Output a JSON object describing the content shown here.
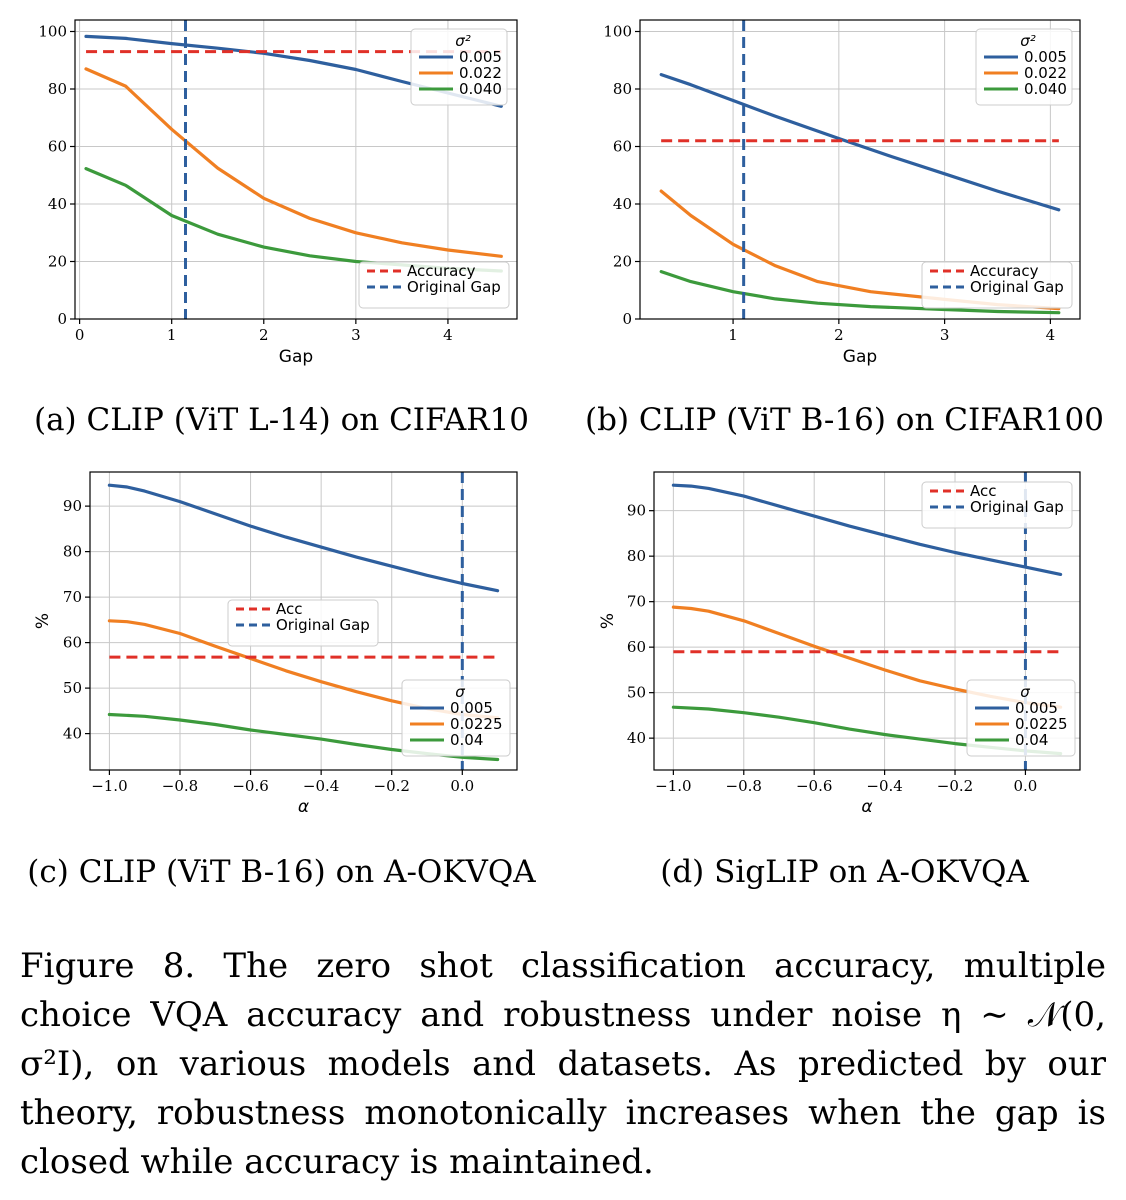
{
  "figure": {
    "caption_label": "Figure 8.",
    "caption_text": "The zero shot classification accuracy, multiple choice VQA accuracy and robustness under noise η ∼ 𝒩(0, σ²I), on various models and datasets. As predicted by our theory, robustness monotonically increases when the gap is closed while accuracy is maintained."
  },
  "colors": {
    "blue": "#2e5f9e",
    "orange": "#f07f22",
    "green": "#3c9a3c",
    "red": "#e03028",
    "grid": "#c8c8c8"
  },
  "chart_data": [
    {
      "type": "line",
      "caption": "(a) CLIP (ViT L-14) on CIFAR10",
      "xlabel": "Gap",
      "ylabel": "",
      "xlim": [
        -0.05,
        4.75
      ],
      "ylim": [
        0,
        104
      ],
      "xticks": [
        0,
        1,
        2,
        3,
        4
      ],
      "xtick_labels": [
        "0",
        "1",
        "2",
        "3",
        "4"
      ],
      "yticks": [
        0,
        20,
        40,
        60,
        80,
        100
      ],
      "ytick_labels": [
        "0",
        "20",
        "40",
        "60",
        "80",
        "100"
      ],
      "legend_title": "σ²",
      "legend_placement": "top-right",
      "ref_legend_placement": "lower-right",
      "series": [
        {
          "name": "0.005",
          "color": "blue",
          "x": [
            0.07,
            0.5,
            1.0,
            1.5,
            2.0,
            2.5,
            3.0,
            3.5,
            4.0,
            4.58
          ],
          "values": [
            98.3,
            97.6,
            95.8,
            94.2,
            92.4,
            89.9,
            86.8,
            82.6,
            78.6,
            74.0
          ]
        },
        {
          "name": "0.022",
          "color": "orange",
          "x": [
            0.07,
            0.5,
            1.0,
            1.5,
            2.0,
            2.5,
            3.0,
            3.5,
            4.0,
            4.58
          ],
          "values": [
            87.0,
            81.0,
            66.0,
            52.5,
            42.0,
            35.0,
            30.0,
            26.5,
            24.0,
            21.8
          ]
        },
        {
          "name": "0.040",
          "color": "green",
          "x": [
            0.07,
            0.5,
            1.0,
            1.5,
            2.0,
            2.5,
            3.0,
            3.5,
            4.0,
            4.58
          ],
          "values": [
            52.3,
            46.5,
            36.0,
            29.5,
            25.0,
            22.0,
            20.0,
            18.8,
            17.6,
            16.7
          ]
        }
      ],
      "ref_lines": [
        {
          "name": "Accuracy",
          "orientation": "horizontal",
          "value": 93.0,
          "from": 0.07,
          "to": 4.58,
          "color": "red"
        },
        {
          "name": "Original Gap",
          "orientation": "vertical",
          "value": 1.15,
          "color": "blue"
        }
      ]
    },
    {
      "type": "line",
      "caption": "(b) CLIP (ViT B-16) on CIFAR100",
      "xlabel": "Gap",
      "ylabel": "",
      "xlim": [
        0.12,
        4.28
      ],
      "ylim": [
        0,
        104
      ],
      "xticks": [
        1,
        2,
        3,
        4
      ],
      "xtick_labels": [
        "1",
        "2",
        "3",
        "4"
      ],
      "yticks": [
        0,
        20,
        40,
        60,
        80,
        100
      ],
      "ytick_labels": [
        "0",
        "20",
        "40",
        "60",
        "80",
        "100"
      ],
      "legend_title": "σ²",
      "legend_placement": "top-right",
      "ref_legend_placement": "lower-right",
      "series": [
        {
          "name": "0.005",
          "color": "blue",
          "x": [
            0.32,
            0.6,
            1.0,
            1.4,
            2.0,
            2.5,
            3.0,
            3.5,
            4.08
          ],
          "values": [
            85.0,
            81.5,
            76.0,
            70.5,
            62.8,
            56.5,
            50.5,
            44.5,
            38.0
          ]
        },
        {
          "name": "0.022",
          "color": "orange",
          "x": [
            0.32,
            0.6,
            1.0,
            1.4,
            1.8,
            2.3,
            3.0,
            3.5,
            4.08
          ],
          "values": [
            44.5,
            36.0,
            26.0,
            18.5,
            13.0,
            9.5,
            6.8,
            5.0,
            3.6
          ]
        },
        {
          "name": "0.040",
          "color": "green",
          "x": [
            0.32,
            0.6,
            1.0,
            1.4,
            1.8,
            2.3,
            3.0,
            3.5,
            4.08
          ],
          "values": [
            16.5,
            13.0,
            9.5,
            7.0,
            5.5,
            4.3,
            3.3,
            2.6,
            2.2
          ]
        }
      ],
      "ref_lines": [
        {
          "name": "Accuracy",
          "orientation": "horizontal",
          "value": 62.0,
          "from": 0.32,
          "to": 4.08,
          "color": "red"
        },
        {
          "name": "Original Gap",
          "orientation": "vertical",
          "value": 1.1,
          "color": "blue"
        }
      ]
    },
    {
      "type": "line",
      "caption": "(c) CLIP (ViT B-16) on A-OKVQA",
      "xlabel": "α",
      "ylabel": "%",
      "xlim": [
        -1.055,
        0.155
      ],
      "ylim": [
        32,
        97.5
      ],
      "xticks": [
        -1.0,
        -0.8,
        -0.6,
        -0.4,
        -0.2,
        0.0
      ],
      "xtick_labels": [
        "−1.0",
        "−0.8",
        "−0.6",
        "−0.4",
        "−0.2",
        "0.0"
      ],
      "yticks": [
        40,
        50,
        60,
        70,
        80,
        90
      ],
      "ytick_labels": [
        "40",
        "50",
        "60",
        "70",
        "80",
        "90"
      ],
      "legend_title": "σ",
      "legend_placement": "lower-right",
      "ref_legend_placement": "center",
      "series": [
        {
          "name": "0.005",
          "color": "blue",
          "x": [
            -1.0,
            -0.95,
            -0.9,
            -0.8,
            -0.7,
            -0.6,
            -0.5,
            -0.4,
            -0.3,
            -0.2,
            -0.1,
            0.0,
            0.1
          ],
          "values": [
            94.6,
            94.2,
            93.3,
            91.0,
            88.3,
            85.6,
            83.2,
            81.0,
            78.8,
            76.8,
            74.8,
            73.0,
            71.4
          ]
        },
        {
          "name": "0.0225",
          "color": "orange",
          "x": [
            -1.0,
            -0.95,
            -0.9,
            -0.8,
            -0.7,
            -0.6,
            -0.5,
            -0.4,
            -0.3,
            -0.2,
            -0.1,
            0.0,
            0.1
          ],
          "values": [
            64.8,
            64.6,
            64.0,
            62.0,
            59.2,
            56.5,
            53.8,
            51.4,
            49.2,
            47.2,
            45.5,
            44.2,
            43.5
          ]
        },
        {
          "name": "0.04",
          "color": "green",
          "x": [
            -1.0,
            -0.9,
            -0.8,
            -0.7,
            -0.6,
            -0.5,
            -0.4,
            -0.3,
            -0.2,
            -0.1,
            0.0,
            0.1
          ],
          "values": [
            44.2,
            43.8,
            43.0,
            42.0,
            40.8,
            39.8,
            38.8,
            37.6,
            36.5,
            35.6,
            34.8,
            34.3
          ]
        }
      ],
      "ref_lines": [
        {
          "name": "Acc",
          "orientation": "horizontal",
          "value": 56.8,
          "from": -1.0,
          "to": 0.1,
          "color": "red"
        },
        {
          "name": "Original Gap",
          "orientation": "vertical",
          "value": 0.0,
          "color": "blue"
        }
      ]
    },
    {
      "type": "line",
      "caption": "(d) SigLIP on A-OKVQA",
      "xlabel": "α",
      "ylabel": "%",
      "xlim": [
        -1.055,
        0.155
      ],
      "ylim": [
        33,
        98.5
      ],
      "xticks": [
        -1.0,
        -0.8,
        -0.6,
        -0.4,
        -0.2,
        0.0
      ],
      "xtick_labels": [
        "−1.0",
        "−0.8",
        "−0.6",
        "−0.4",
        "−0.2",
        "0.0"
      ],
      "yticks": [
        40,
        50,
        60,
        70,
        80,
        90
      ],
      "ytick_labels": [
        "40",
        "50",
        "60",
        "70",
        "80",
        "90"
      ],
      "legend_title": "σ",
      "legend_placement": "lower-right",
      "ref_legend_placement": "top-right",
      "series": [
        {
          "name": "0.005",
          "color": "blue",
          "x": [
            -1.0,
            -0.95,
            -0.9,
            -0.8,
            -0.7,
            -0.6,
            -0.5,
            -0.4,
            -0.3,
            -0.2,
            -0.1,
            0.0,
            0.1
          ],
          "values": [
            95.6,
            95.4,
            94.9,
            93.2,
            91.0,
            88.8,
            86.6,
            84.6,
            82.6,
            80.8,
            79.2,
            77.6,
            76.0
          ]
        },
        {
          "name": "0.0225",
          "color": "orange",
          "x": [
            -1.0,
            -0.95,
            -0.9,
            -0.8,
            -0.7,
            -0.6,
            -0.5,
            -0.4,
            -0.3,
            -0.2,
            -0.1,
            0.0,
            0.1
          ],
          "values": [
            68.8,
            68.5,
            67.9,
            65.8,
            63.0,
            60.2,
            57.6,
            55.0,
            52.6,
            50.8,
            49.2,
            47.8,
            46.8
          ]
        },
        {
          "name": "0.04",
          "color": "green",
          "x": [
            -1.0,
            -0.9,
            -0.8,
            -0.7,
            -0.6,
            -0.5,
            -0.4,
            -0.3,
            -0.2,
            -0.1,
            0.0,
            0.1
          ],
          "values": [
            46.8,
            46.4,
            45.6,
            44.6,
            43.4,
            42.0,
            40.8,
            39.8,
            38.8,
            38.0,
            37.2,
            36.6
          ]
        }
      ],
      "ref_lines": [
        {
          "name": "Acc",
          "orientation": "horizontal",
          "value": 59.0,
          "from": -1.0,
          "to": 0.1,
          "color": "red"
        },
        {
          "name": "Original Gap",
          "orientation": "vertical",
          "value": 0.0,
          "color": "blue"
        }
      ]
    }
  ]
}
